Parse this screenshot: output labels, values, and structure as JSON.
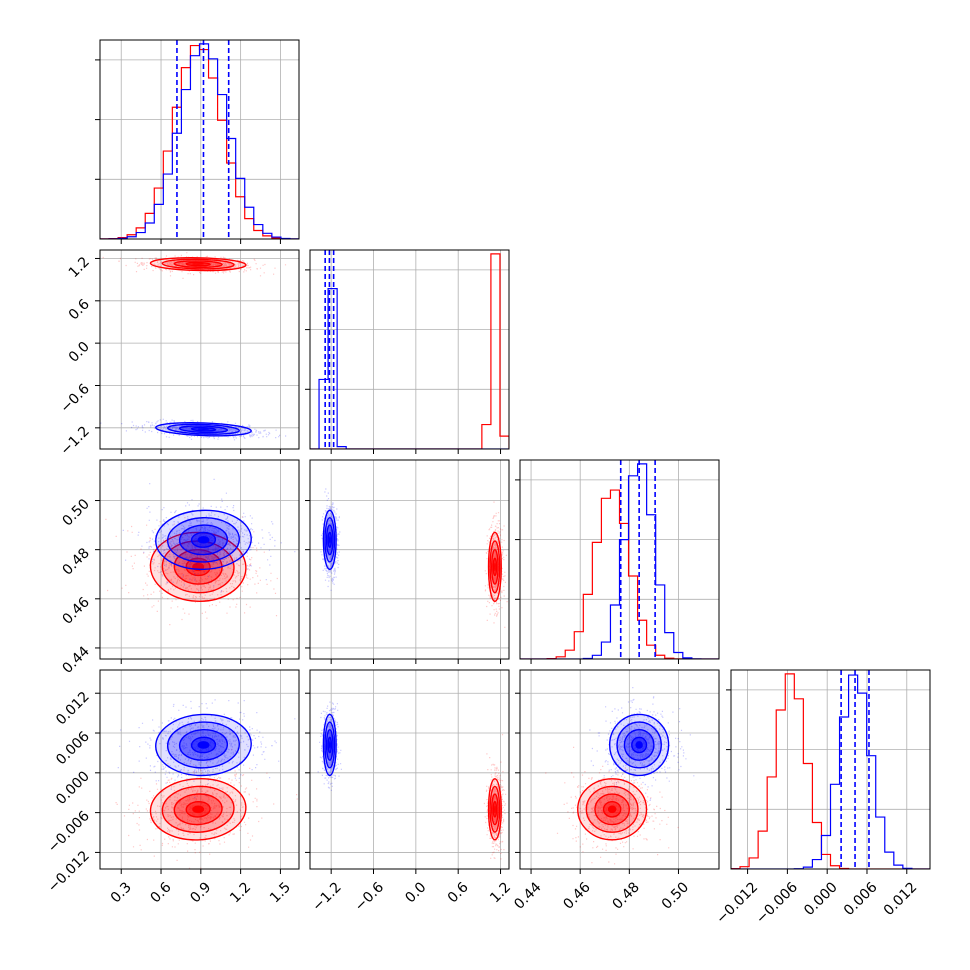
{
  "chart_data": {
    "type": "corner",
    "n_params": 4,
    "grid": true,
    "series": [
      {
        "color": "#ff0000",
        "centers": [
          0.88,
          1.12,
          0.473,
          -0.0055
        ],
        "sigmas": [
          0.18,
          0.045,
          0.007,
          0.0023
        ],
        "corr": [
          [
            1,
            -0.25,
            -0.1,
            0.15
          ],
          [
            -0.25,
            1,
            0,
            0
          ],
          [
            -0.1,
            0,
            1,
            0
          ],
          [
            0.15,
            0,
            0,
            1
          ]
        ]
      },
      {
        "color": "#0000ff",
        "centers": [
          0.92,
          -1.22,
          0.484,
          0.0042
        ],
        "sigmas": [
          0.18,
          0.045,
          0.006,
          0.0023
        ],
        "corr": [
          [
            1,
            -0.45,
            0.1,
            0.1
          ],
          [
            -0.45,
            1,
            0,
            0
          ],
          [
            0.1,
            0,
            1,
            0
          ],
          [
            0.1,
            0,
            0,
            1
          ]
        ]
      }
    ],
    "blue_quantiles": [
      [
        0.72,
        0.92,
        1.11
      ],
      [
        -1.285,
        -1.225,
        -1.165
      ],
      [
        0.4765,
        0.484,
        0.4905
      ],
      [
        0.0021,
        0.0042,
        0.0063
      ]
    ],
    "axes": [
      {
        "range": [
          0.14,
          1.64
        ],
        "ticks": [
          0.3,
          0.6,
          0.9,
          1.2,
          1.5
        ],
        "tick_labels": [
          "0.3",
          "0.6",
          "0.9",
          "1.2",
          "1.5"
        ]
      },
      {
        "range": [
          -1.5,
          1.32
        ],
        "ticks": [
          -1.2,
          -0.6,
          0.0,
          0.6,
          1.2
        ],
        "tick_labels": [
          "−1.2",
          "−0.6",
          "0.0",
          "0.6",
          "1.2"
        ]
      },
      {
        "range": [
          0.4355,
          0.5165
        ],
        "ticks": [
          0.44,
          0.46,
          0.48,
          0.5
        ],
        "tick_labels": [
          "0.44",
          "0.46",
          "0.48",
          "0.50"
        ]
      },
      {
        "range": [
          -0.0145,
          0.0155
        ],
        "ticks": [
          -0.012,
          -0.006,
          0.0,
          0.006,
          0.012
        ],
        "tick_labels": [
          "−0.012",
          "−0.006",
          "0.000",
          "0.006",
          "0.012"
        ]
      }
    ]
  }
}
